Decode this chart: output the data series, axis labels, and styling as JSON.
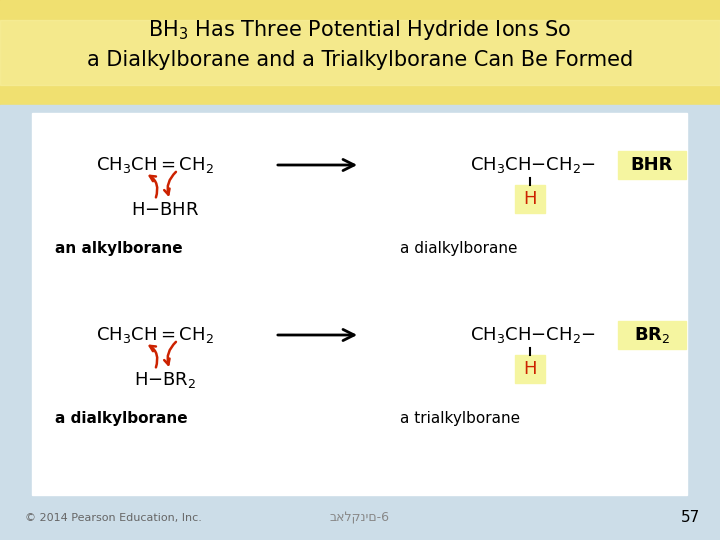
{
  "header_bg_top": "#e8d060",
  "header_bg_bottom": "#f5f0b0",
  "body_bg": "#ccdde8",
  "white_panel": "#ffffff",
  "yellow_highlight": "#f5f5a0",
  "red_color": "#cc2200",
  "title_line1": "BH$_3$ Has Three Potential Hydride Ions So",
  "title_line2": "a Dialkylborane and a Trialkylborane Can Be Formed",
  "title_fontsize": 15,
  "footer_text": "באלקנים-6",
  "page_num": "57",
  "copyright": "© 2014 Pearson Education, Inc.",
  "row1_left_mol": "CH$_3$CH$=$CH$_2$",
  "row1_reagent": "H$-$BHR",
  "row1_right_mol": "CH$_3$CH$-$CH$_2$$-$",
  "row1_right_end": "BHR",
  "row1_right_H": "H",
  "row1_left_label": "an alkylborane",
  "row1_right_label": "a dialkylborane",
  "row2_left_mol": "CH$_3$CH$=$CH$_2$",
  "row2_reagent": "H$-$BR$_2$",
  "row2_right_mol": "CH$_3$CH$-$CH$_2$$-$",
  "row2_right_end": "BR$_2$",
  "row2_right_H": "H",
  "row2_left_label": "a dialkylborane",
  "row2_right_label": "a trialkylborane"
}
